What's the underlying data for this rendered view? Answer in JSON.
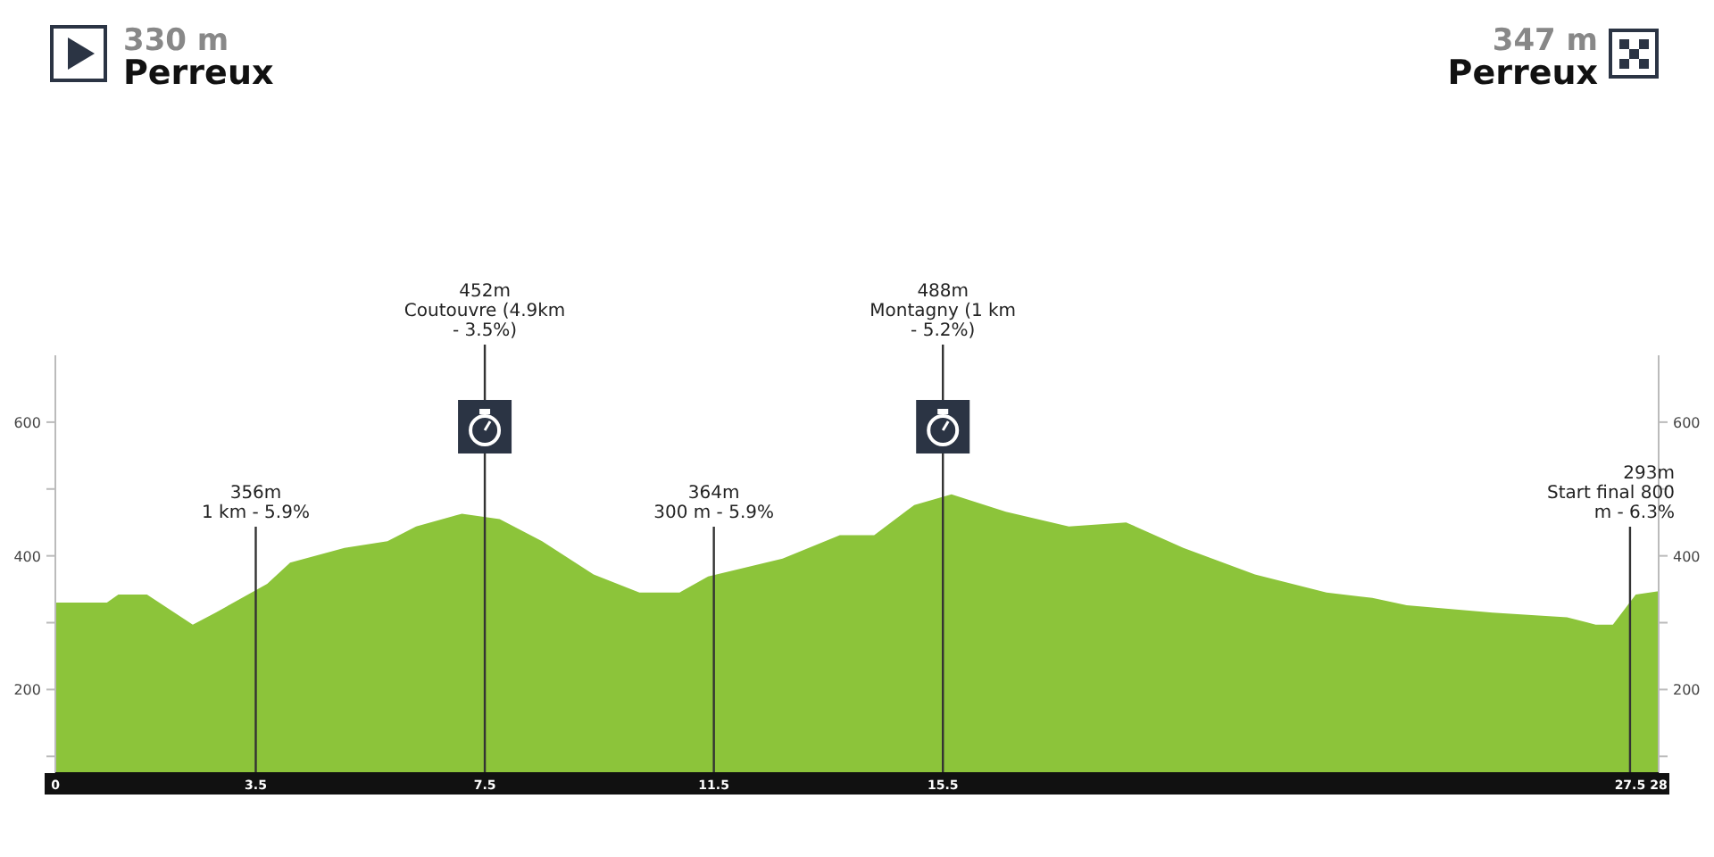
{
  "chart_data": {
    "type": "area",
    "x": [
      0,
      0.9,
      1.1,
      1.6,
      2.4,
      2.8,
      3.7,
      4.1,
      5.05,
      5.8,
      6.3,
      7.1,
      7.76,
      8.5,
      9.4,
      10.2,
      10.9,
      11.4,
      12.7,
      13.7,
      14.3,
      15.0,
      15.65,
      16.6,
      17.7,
      18.7,
      19.7,
      20.95,
      22.2,
      23.0,
      23.6,
      25.1,
      26.4,
      26.9,
      27.2,
      27.6,
      28
    ],
    "series": [
      {
        "color": "#8cc43a",
        "values": [
          330,
          330,
          342,
          342,
          297,
          315,
          358,
          390,
          412,
          422,
          444,
          463,
          455,
          422,
          372,
          345,
          345,
          369,
          396,
          431,
          431,
          476,
          492,
          466,
          444,
          450,
          412,
          372,
          345,
          337,
          326,
          315,
          308,
          297,
          297,
          342,
          347
        ]
      }
    ],
    "xlim": [
      0,
      28
    ],
    "xticks": [
      0,
      3.5,
      7.5,
      11.5,
      15.5,
      27.5,
      28
    ],
    "ylim": [
      75,
      700
    ],
    "yticks": [
      {
        "value": 100,
        "label": null
      },
      200,
      {
        "value": 300,
        "label": null
      },
      400,
      {
        "value": 500,
        "label": null
      },
      600
    ],
    "y2lim": [
      75,
      700
    ],
    "y2ticks": [
      {
        "value": 100,
        "label": null
      },
      200,
      {
        "value": 300,
        "label": null
      },
      400,
      {
        "value": 500,
        "label": null
      },
      600
    ],
    "ref_lines": [
      {
        "axis": "x",
        "value": 3.5,
        "label": "356m\n1 km - 5.9%",
        "color": "#333333"
      },
      {
        "axis": "x",
        "value": 7.5,
        "label": "452m\nCoutouvre (4.9km\n- 3.5%)",
        "color": "#333333"
      },
      {
        "axis": "x",
        "value": 11.5,
        "label": "364m\n300 m - 5.9%",
        "color": "#333333"
      },
      {
        "axis": "x",
        "value": 15.5,
        "label": "488m\nMontagny (1 km\n- 5.2%)",
        "color": "#333333"
      },
      {
        "axis": "x",
        "value": 27.5,
        "label": "293m\nStart final 800\nm - 6.3%",
        "color": "#333333"
      }
    ],
    "annotations": [
      "330 m",
      "Perreux",
      "347 m",
      "Perreux"
    ],
    "grid": false
  }
}
